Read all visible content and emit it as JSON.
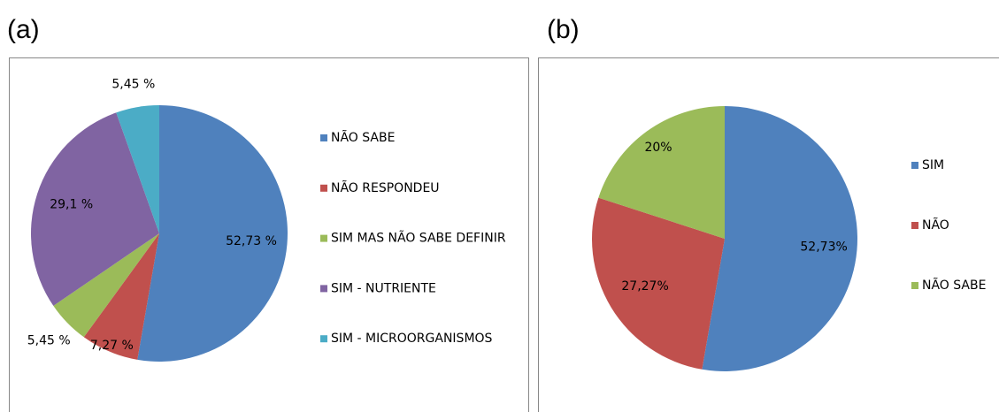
{
  "chart_data": [
    {
      "type": "pie",
      "panel_label": "(a)",
      "categories": [
        "NÃO SABE",
        "NÃO RESPONDEU",
        "SIM MAS NÃO SABE DEFINIR",
        "SIM - NUTRIENTE",
        "SIM - MICROORGANISMOS"
      ],
      "values": [
        52.73,
        7.27,
        5.45,
        29.1,
        5.45
      ],
      "value_labels": [
        "52,73 %",
        "7,27 %",
        "5,45 %",
        "29,1 %",
        "5,45 %"
      ],
      "colors": [
        "#4f81bd",
        "#c0504d",
        "#9bbb59",
        "#8064a2",
        "#4bacc6"
      ],
      "legend": "right"
    },
    {
      "type": "pie",
      "panel_label": "(b)",
      "categories": [
        "SIM",
        "NÃO",
        "NÃO SABE"
      ],
      "values": [
        52.73,
        27.27,
        20
      ],
      "value_labels": [
        "52,73%",
        "27,27%",
        "20%"
      ],
      "colors": [
        "#4f81bd",
        "#c0504d",
        "#9bbb59"
      ],
      "legend": "right"
    }
  ]
}
